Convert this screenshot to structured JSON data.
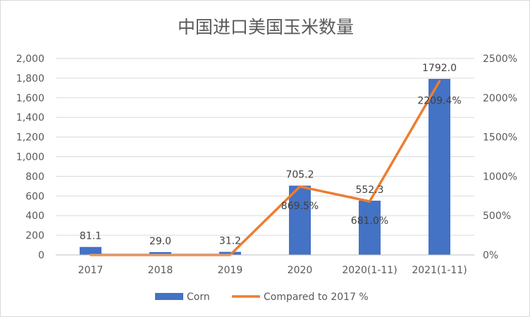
{
  "chart_data": {
    "type": "bar",
    "title": "中国进口美国玉米数量",
    "categories": [
      "2017",
      "2018",
      "2019",
      "2020",
      "2020(1-11)",
      "2021(1-11)"
    ],
    "series": [
      {
        "name": "Corn",
        "type": "bar",
        "axis": "left",
        "color": "#4472c4",
        "values": [
          81.1,
          29.0,
          31.2,
          705.2,
          552.3,
          1792.0
        ],
        "labels": [
          "81.1",
          "29.0",
          "31.2",
          "705.2",
          "552.3",
          "1792.0"
        ]
      },
      {
        "name": "Compared to 2017 %",
        "type": "line",
        "axis": "right",
        "color": "#ed7d31",
        "values": [
          0,
          0,
          0,
          869.5,
          681.0,
          2209.4
        ],
        "labels": [
          "",
          "",
          "",
          "869.5%",
          "681.0%",
          "2209.4%"
        ]
      }
    ],
    "y_left": {
      "ylim": [
        0,
        2000
      ],
      "ticks": [
        "0",
        "200",
        "400",
        "600",
        "800",
        "1,000",
        "1,200",
        "1,400",
        "1,600",
        "1,800",
        "2,000"
      ]
    },
    "y_right": {
      "ylim": [
        0,
        2500
      ],
      "ticks": [
        "0%",
        "500%",
        "1000%",
        "1500%",
        "2000%",
        "2500%"
      ]
    },
    "legend_position": "bottom",
    "grid": true
  }
}
